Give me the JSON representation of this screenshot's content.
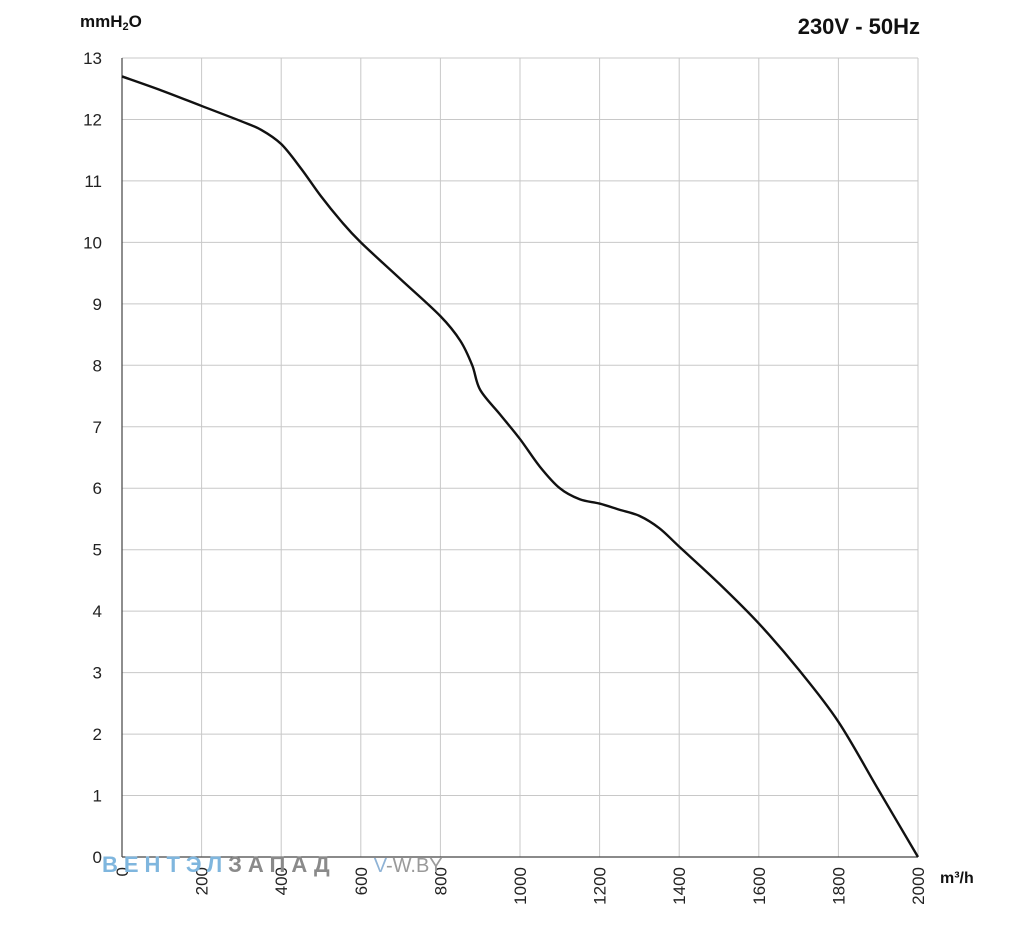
{
  "header": {
    "y_unit_main": "mmH",
    "y_unit_sub": "2",
    "y_unit_tail": "O",
    "title": "230V - 50Hz"
  },
  "footer": {
    "x_unit": "m³/h"
  },
  "watermark": {
    "part1": "ВЕНТЭЛ",
    "part2": "ЗАПАД",
    "part3": "V",
    "part4": "-W.BY"
  },
  "chart_data": {
    "type": "line",
    "title": "230V - 50Hz",
    "xlabel": "m³/h",
    "ylabel": "mmH2O",
    "xlim": [
      0,
      2000
    ],
    "ylim": [
      0,
      13
    ],
    "x_ticks": [
      0,
      200,
      400,
      600,
      800,
      1000,
      1200,
      1400,
      1600,
      1800,
      2000
    ],
    "y_ticks": [
      0,
      1,
      2,
      3,
      4,
      5,
      6,
      7,
      8,
      9,
      10,
      11,
      12,
      13
    ],
    "grid": true,
    "colors": {
      "line": "#111111",
      "grid": "#c8c8c8",
      "axis": "#444444"
    },
    "series": [
      {
        "points": [
          [
            0,
            12.7
          ],
          [
            100,
            12.47
          ],
          [
            200,
            12.22
          ],
          [
            300,
            11.97
          ],
          [
            350,
            11.83
          ],
          [
            400,
            11.6
          ],
          [
            450,
            11.2
          ],
          [
            500,
            10.75
          ],
          [
            550,
            10.35
          ],
          [
            600,
            10.0
          ],
          [
            700,
            9.4
          ],
          [
            800,
            8.8
          ],
          [
            850,
            8.4
          ],
          [
            880,
            8.0
          ],
          [
            900,
            7.6
          ],
          [
            950,
            7.2
          ],
          [
            1000,
            6.8
          ],
          [
            1050,
            6.35
          ],
          [
            1100,
            6.0
          ],
          [
            1150,
            5.82
          ],
          [
            1200,
            5.75
          ],
          [
            1250,
            5.65
          ],
          [
            1300,
            5.55
          ],
          [
            1350,
            5.35
          ],
          [
            1400,
            5.05
          ],
          [
            1500,
            4.45
          ],
          [
            1600,
            3.8
          ],
          [
            1700,
            3.05
          ],
          [
            1800,
            2.2
          ],
          [
            1900,
            1.1
          ],
          [
            2000,
            0
          ]
        ]
      }
    ]
  }
}
